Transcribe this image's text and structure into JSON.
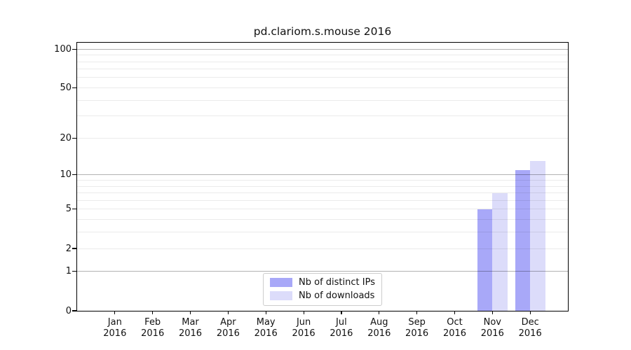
{
  "chart_data": {
    "type": "bar",
    "title": "pd.clariom.s.mouse 2016",
    "categories": [
      "Jan",
      "Feb",
      "Mar",
      "Apr",
      "May",
      "Jun",
      "Jul",
      "Aug",
      "Sep",
      "Oct",
      "Nov",
      "Dec"
    ],
    "category_year": "2016",
    "series": [
      {
        "name": "Nb of distinct IPs",
        "color": "#a8a8f8",
        "values": [
          0,
          0,
          0,
          0,
          0,
          0,
          0,
          0,
          0,
          0,
          5,
          11
        ]
      },
      {
        "name": "Nb of downloads",
        "color": "#dcdcfa",
        "values": [
          0,
          0,
          0,
          0,
          0,
          0,
          0,
          0,
          0,
          0,
          7,
          13
        ]
      }
    ],
    "xlabel": "",
    "ylabel": "",
    "yscale": "log1p",
    "ylim": [
      0,
      112
    ],
    "yticks": [
      0,
      1,
      2,
      5,
      10,
      20,
      50,
      100
    ],
    "major_yticks": [
      1,
      10,
      100
    ],
    "minor_yticks": [
      3,
      4,
      6,
      7,
      8,
      9,
      30,
      40,
      60,
      70,
      80,
      90
    ],
    "grid": "horizontal",
    "legend_position": "lower center",
    "colors": {
      "frame": "#000000",
      "major_grid": "#b3b3b3",
      "minor_grid": "#ebebeb",
      "legend_border": "#cccccc",
      "background": "#ffffff",
      "text": "#111111"
    }
  }
}
